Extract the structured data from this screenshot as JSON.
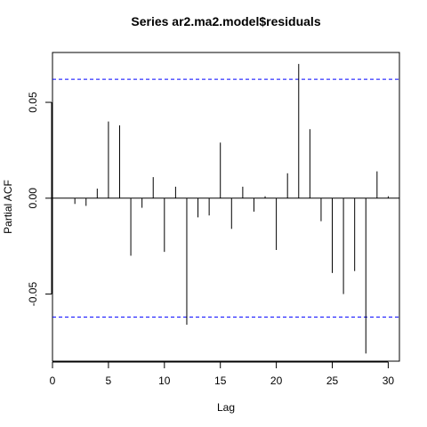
{
  "chart_data": {
    "type": "bar",
    "title": "Series  ar2.ma2.model$residuals",
    "xlabel": "Lag",
    "ylabel": "Partial ACF",
    "xlim": [
      0,
      31
    ],
    "ylim": [
      -0.085,
      0.076
    ],
    "x_ticks": [
      0,
      5,
      10,
      15,
      20,
      25,
      30
    ],
    "x_tick_labels": [
      "0",
      "5",
      "10",
      "15",
      "20",
      "25",
      "30"
    ],
    "y_ticks": [
      -0.05,
      0.0,
      0.05
    ],
    "y_tick_labels": [
      "-0.05",
      "0.00",
      "0.05"
    ],
    "confidence_band": [
      0.062,
      -0.062
    ],
    "zero_line": 0,
    "band_color": "#0000ff",
    "bar_color": "#000000",
    "x": [
      1,
      2,
      3,
      4,
      5,
      6,
      7,
      8,
      9,
      10,
      11,
      12,
      13,
      14,
      15,
      16,
      17,
      18,
      19,
      20,
      21,
      22,
      23,
      24,
      25,
      26,
      27,
      28,
      29,
      30
    ],
    "values": [
      0.0,
      -0.003,
      -0.004,
      0.005,
      0.04,
      0.038,
      -0.03,
      -0.005,
      0.011,
      -0.028,
      0.006,
      -0.066,
      -0.01,
      -0.009,
      0.029,
      -0.016,
      0.006,
      -0.007,
      0.001,
      -0.027,
      0.013,
      0.07,
      0.036,
      -0.012,
      -0.039,
      -0.05,
      -0.038,
      -0.081,
      0.014,
      0.001
    ]
  }
}
